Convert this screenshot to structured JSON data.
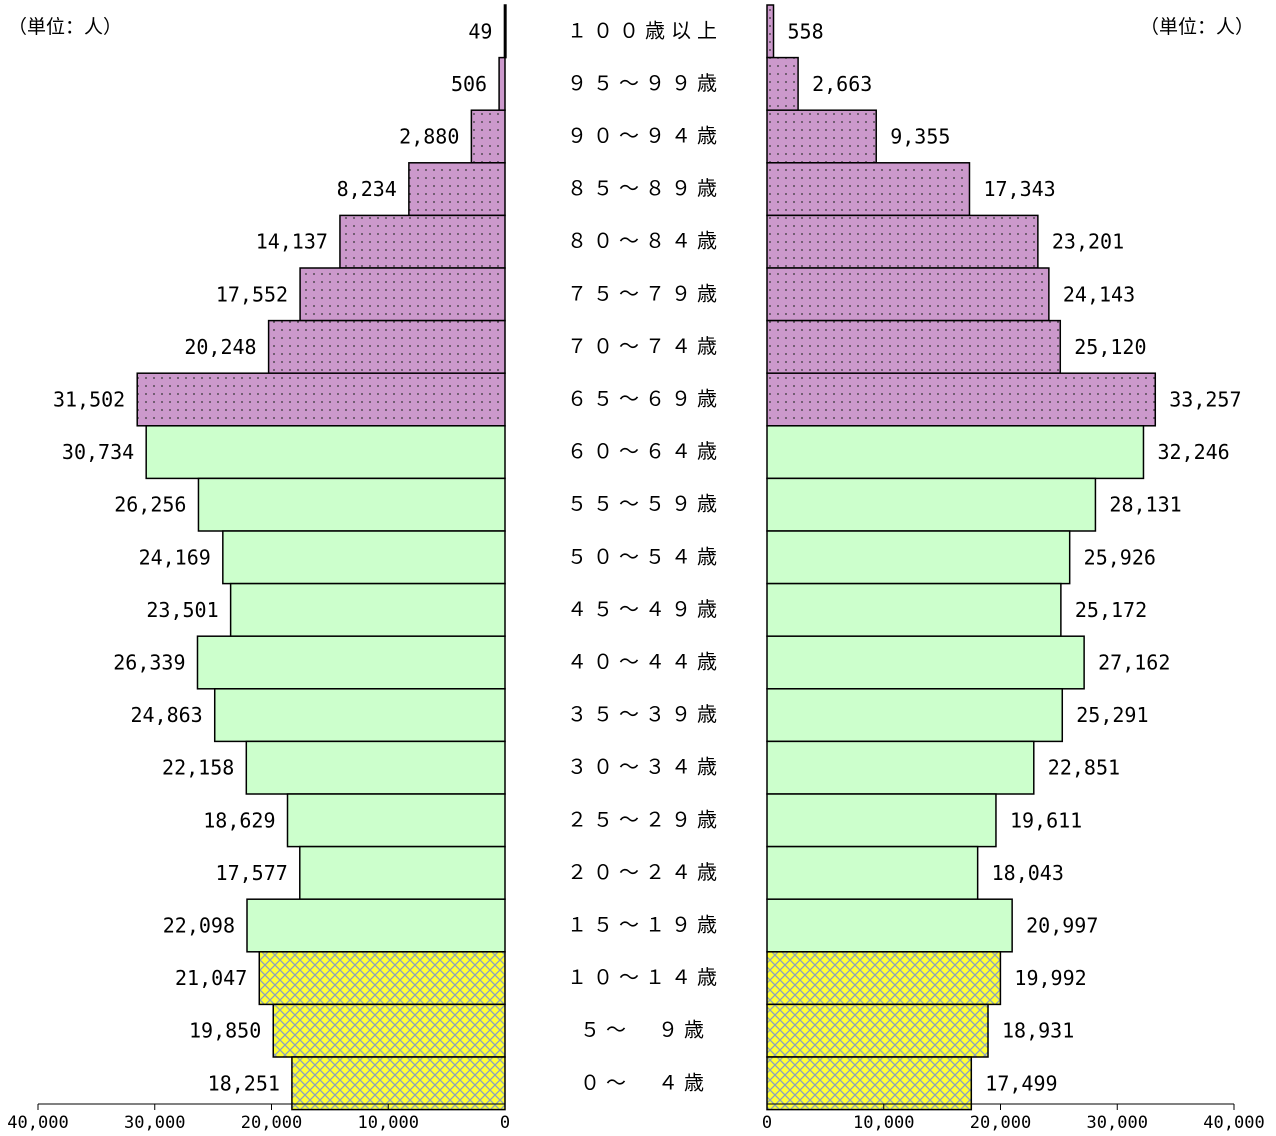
{
  "units": {
    "left": "（単位：人）",
    "right": "（単位：人）"
  },
  "colors": {
    "working": "#ccffcc",
    "elderly": "#cc99cc",
    "elderly_dots": "#333333",
    "youth": "#ffff33",
    "youth_hatch": "#8aa0c0",
    "stroke": "#000000"
  },
  "chart_data": {
    "type": "bar",
    "orientation": "horizontal-pyramid",
    "categories": [
      "１００歳以上",
      "９５～９９歳",
      "９０～９４歳",
      "８５～８９歳",
      "８０～８４歳",
      "７５～７９歳",
      "７０～７４歳",
      "６５～６９歳",
      "６０～６４歳",
      "５５～５９歳",
      "５０～５４歳",
      "４５～４９歳",
      "４０～４４歳",
      "３５～３９歳",
      "３０～３４歳",
      "２５～２９歳",
      "２０～２４歳",
      "１５～１９歳",
      "１０～１４歳",
      "５～　９歳",
      "０～　４歳"
    ],
    "groups": [
      "elderly",
      "elderly",
      "elderly",
      "elderly",
      "elderly",
      "elderly",
      "elderly",
      "elderly",
      "working",
      "working",
      "working",
      "working",
      "working",
      "working",
      "working",
      "working",
      "working",
      "working",
      "youth",
      "youth",
      "youth"
    ],
    "series": [
      {
        "side": "left",
        "values": [
          49,
          506,
          2880,
          8234,
          14137,
          17552,
          20248,
          31502,
          30734,
          26256,
          24169,
          23501,
          26339,
          24863,
          22158,
          18629,
          17577,
          22098,
          21047,
          19850,
          18251
        ],
        "labels": [
          "49",
          "506",
          "2,880",
          "8,234",
          "14,137",
          "17,552",
          "20,248",
          "31,502",
          "30,734",
          "26,256",
          "24,169",
          "23,501",
          "26,339",
          "24,863",
          "22,158",
          "18,629",
          "17,577",
          "22,098",
          "21,047",
          "19,850",
          "18,251"
        ]
      },
      {
        "side": "right",
        "values": [
          558,
          2663,
          9355,
          17343,
          23201,
          24143,
          25120,
          33257,
          32246,
          28131,
          25926,
          25172,
          27162,
          25291,
          22851,
          19611,
          18043,
          20997,
          19992,
          18931,
          17499
        ],
        "labels": [
          "558",
          "2,663",
          "9,355",
          "17,343",
          "23,201",
          "24,143",
          "25,120",
          "33,257",
          "32,246",
          "28,131",
          "25,926",
          "25,172",
          "27,162",
          "25,291",
          "22,851",
          "19,611",
          "18,043",
          "20,997",
          "19,992",
          "18,931",
          "17,499"
        ]
      }
    ],
    "xlim": [
      0,
      40000
    ],
    "left_ticks": [
      "40,000",
      "30,000",
      "20,000",
      "10,000",
      "0"
    ],
    "right_ticks": [
      "0",
      "10,000",
      "20,000",
      "30,000",
      "40,000"
    ],
    "grid": false
  }
}
